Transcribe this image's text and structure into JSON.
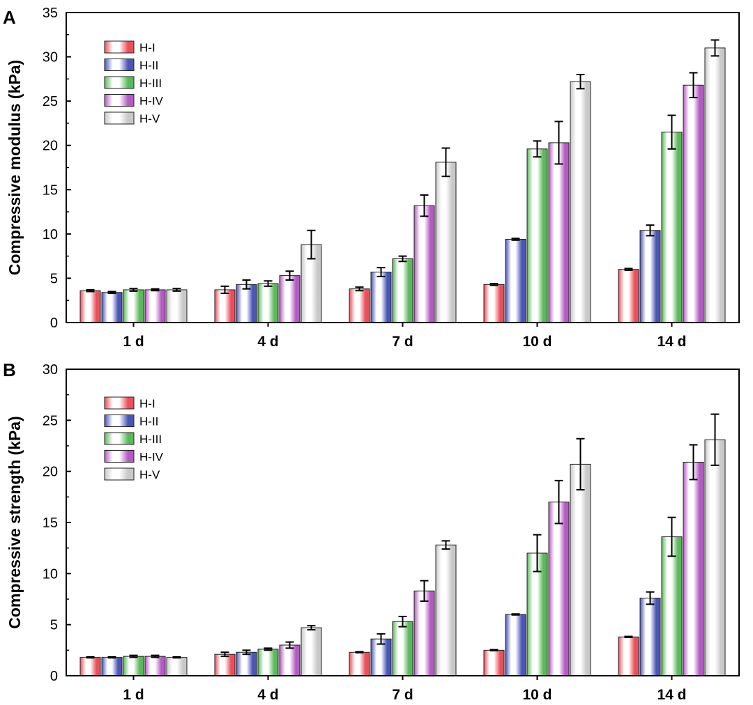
{
  "chart_data": [
    {
      "type": "bar",
      "panel_label": "A",
      "title": "",
      "xlabel": "",
      "ylabel": "Compressive modulus (kPa)",
      "categories": [
        "1 d",
        "4 d",
        "7 d",
        "10 d",
        "14 d"
      ],
      "ylim": [
        0,
        35
      ],
      "yticks": [
        0,
        5,
        10,
        15,
        20,
        25,
        30,
        35
      ],
      "legend_position": "top-left",
      "series": [
        {
          "name": "H-I",
          "values": [
            3.6,
            3.7,
            3.8,
            4.3,
            6.0
          ],
          "errors": [
            0.1,
            0.4,
            0.2,
            0.1,
            0.1
          ],
          "color": "#e9505a"
        },
        {
          "name": "H-II",
          "values": [
            3.4,
            4.3,
            5.7,
            9.4,
            10.4
          ],
          "errors": [
            0.1,
            0.5,
            0.5,
            0.1,
            0.6
          ],
          "color": "#4b55b6"
        },
        {
          "name": "H-III",
          "values": [
            3.7,
            4.4,
            7.2,
            19.6,
            21.5
          ],
          "errors": [
            0.15,
            0.3,
            0.3,
            0.9,
            1.9
          ],
          "color": "#5cb85c"
        },
        {
          "name": "H-IV",
          "values": [
            3.7,
            5.3,
            13.2,
            20.3,
            26.8
          ],
          "errors": [
            0.1,
            0.5,
            1.2,
            2.4,
            1.4
          ],
          "color": "#b45bc2"
        },
        {
          "name": "H-V",
          "values": [
            3.7,
            8.8,
            18.1,
            27.2,
            31.0
          ],
          "errors": [
            0.15,
            1.6,
            1.6,
            0.8,
            0.9
          ],
          "color": "#c8c8c8"
        }
      ]
    },
    {
      "type": "bar",
      "panel_label": "B",
      "title": "",
      "xlabel": "",
      "ylabel": "Compressive strength (kPa)",
      "categories": [
        "1 d",
        "4 d",
        "7 d",
        "10 d",
        "14 d"
      ],
      "ylim": [
        0,
        30
      ],
      "yticks": [
        0,
        5,
        10,
        15,
        20,
        25,
        30
      ],
      "legend_position": "top-left",
      "series": [
        {
          "name": "H-I",
          "values": [
            1.8,
            2.1,
            2.3,
            2.5,
            3.8
          ],
          "errors": [
            0.05,
            0.2,
            0.05,
            0.05,
            0.05
          ],
          "color": "#e9505a"
        },
        {
          "name": "H-II",
          "values": [
            1.8,
            2.3,
            3.6,
            6.0,
            7.6
          ],
          "errors": [
            0.05,
            0.2,
            0.5,
            0.05,
            0.6
          ],
          "color": "#4b55b6"
        },
        {
          "name": "H-III",
          "values": [
            1.9,
            2.6,
            5.3,
            12.0,
            13.6
          ],
          "errors": [
            0.1,
            0.1,
            0.5,
            1.8,
            1.9
          ],
          "color": "#5cb85c"
        },
        {
          "name": "H-IV",
          "values": [
            1.9,
            3.0,
            8.3,
            17.0,
            20.9
          ],
          "errors": [
            0.1,
            0.3,
            1.0,
            2.1,
            1.7
          ],
          "color": "#b45bc2"
        },
        {
          "name": "H-V",
          "values": [
            1.8,
            4.7,
            12.8,
            20.7,
            23.1
          ],
          "errors": [
            0.05,
            0.2,
            0.4,
            2.5,
            2.5
          ],
          "color": "#c8c8c8"
        }
      ]
    }
  ]
}
